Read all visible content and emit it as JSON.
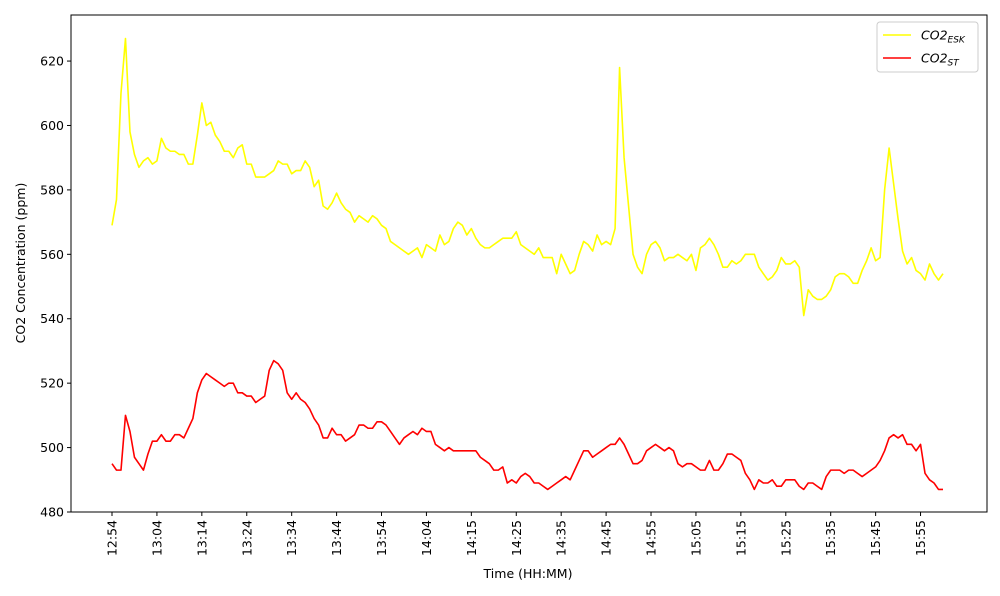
{
  "chart_data": {
    "type": "line",
    "x_label": "Time (HH:MM)",
    "y_label": "CO2 Concentration (ppm)",
    "legend": "upper right",
    "x": [
      "12:54",
      "12:55",
      "12:56",
      "12:57",
      "12:58",
      "12:59",
      "13:00",
      "13:01",
      "13:02",
      "13:03",
      "13:04",
      "13:05",
      "13:06",
      "13:07",
      "13:08",
      "13:09",
      "13:10",
      "13:11",
      "13:12",
      "13:13",
      "13:14",
      "13:15",
      "13:16",
      "13:17",
      "13:18",
      "13:19",
      "13:20",
      "13:21",
      "13:22",
      "13:23",
      "13:24",
      "13:25",
      "13:26",
      "13:27",
      "13:28",
      "13:29",
      "13:30",
      "13:31",
      "13:32",
      "13:33",
      "13:34",
      "13:35",
      "13:36",
      "13:37",
      "13:38",
      "13:39",
      "13:40",
      "13:41",
      "13:42",
      "13:43",
      "13:44",
      "13:45",
      "13:46",
      "13:47",
      "13:48",
      "13:49",
      "13:50",
      "13:51",
      "13:52",
      "13:53",
      "13:54",
      "13:55",
      "13:56",
      "13:57",
      "13:58",
      "13:59",
      "14:00",
      "14:01",
      "14:02",
      "14:03",
      "14:04",
      "14:05",
      "14:06",
      "14:07",
      "14:08",
      "14:09",
      "14:10",
      "14:11",
      "14:12",
      "14:13",
      "14:15",
      "14:16",
      "14:17",
      "14:18",
      "14:19",
      "14:20",
      "14:21",
      "14:22",
      "14:23",
      "14:24",
      "14:25",
      "14:26",
      "14:27",
      "14:28",
      "14:29",
      "14:30",
      "14:31",
      "14:32",
      "14:33",
      "14:34",
      "14:35",
      "14:36",
      "14:37",
      "14:38",
      "14:39",
      "14:40",
      "14:41",
      "14:42",
      "14:43",
      "14:44",
      "14:45",
      "14:46",
      "14:47",
      "14:48",
      "14:49",
      "14:50",
      "14:51",
      "14:52",
      "14:53",
      "14:54",
      "14:55",
      "14:56",
      "14:57",
      "14:58",
      "14:59",
      "15:00",
      "15:01",
      "15:02",
      "15:03",
      "15:04",
      "15:05",
      "15:06",
      "15:07",
      "15:08",
      "15:09",
      "15:10",
      "15:11",
      "15:12",
      "15:13",
      "15:14",
      "15:15",
      "15:16",
      "15:17",
      "15:18",
      "15:19",
      "15:20",
      "15:21",
      "15:22",
      "15:23",
      "15:24",
      "15:25",
      "15:26",
      "15:27",
      "15:28",
      "15:29",
      "15:30",
      "15:31",
      "15:32",
      "15:33",
      "15:34",
      "15:35",
      "15:36",
      "15:37",
      "15:38",
      "15:39",
      "15:40",
      "15:41",
      "15:42",
      "15:43",
      "15:44",
      "15:45",
      "15:46",
      "15:47",
      "15:48",
      "15:49",
      "15:50",
      "15:51",
      "15:52",
      "15:53",
      "15:54",
      "15:55",
      "15:56",
      "15:57",
      "15:58",
      "15:59",
      "16:00"
    ],
    "xticks": [
      "12:54",
      "13:04",
      "13:14",
      "13:24",
      "13:34",
      "13:44",
      "13:54",
      "14:04",
      "14:15",
      "14:25",
      "14:35",
      "14:45",
      "14:55",
      "15:05",
      "15:15",
      "15:25",
      "15:35",
      "15:45",
      "15:55"
    ],
    "ylim": [
      480,
      634.3
    ],
    "yticks": [
      480,
      500,
      520,
      540,
      560,
      580,
      600,
      620
    ],
    "series": [
      {
        "name": "CO2",
        "subscript": "ESK",
        "color": "#ffff00",
        "values": [
          569,
          577,
          610,
          627,
          598,
          591,
          587,
          589,
          590,
          588,
          589,
          596,
          593,
          592,
          592,
          591,
          591,
          588,
          588,
          597,
          607,
          600,
          601,
          597,
          595,
          592,
          592,
          590,
          593,
          594,
          588,
          588,
          584,
          584,
          584,
          585,
          586,
          589,
          588,
          588,
          585,
          586,
          586,
          589,
          587,
          581,
          583,
          575,
          574,
          576,
          579,
          576,
          574,
          573,
          570,
          572,
          571,
          570,
          572,
          571,
          569,
          568,
          564,
          563,
          562,
          561,
          560,
          561,
          562,
          559,
          563,
          562,
          561,
          566,
          563,
          564,
          568,
          570,
          569,
          566,
          568,
          565,
          563,
          562,
          562,
          563,
          564,
          565,
          565,
          565,
          567,
          563,
          562,
          561,
          560,
          562,
          559,
          559,
          559,
          554,
          560,
          557,
          554,
          555,
          560,
          564,
          563,
          561,
          566,
          563,
          564,
          563,
          568,
          618,
          590,
          575,
          560,
          556,
          554,
          560,
          563,
          564,
          562,
          558,
          559,
          559,
          560,
          559,
          558,
          560,
          555,
          562,
          563,
          565,
          563,
          560,
          556,
          556,
          558,
          557,
          558,
          560,
          560,
          560,
          556,
          554,
          552,
          553,
          555,
          559,
          557,
          557,
          558,
          556,
          541,
          549,
          547,
          546,
          546,
          547,
          549,
          553,
          554,
          554,
          553,
          551,
          551,
          555,
          558,
          562,
          558,
          559,
          580,
          593,
          582,
          571,
          561,
          557,
          559,
          555,
          554,
          552,
          557,
          554,
          552,
          554
        ]
      },
      {
        "name": "CO2",
        "subscript": "ST",
        "color": "#ff0000",
        "values": [
          495,
          493,
          493,
          510,
          505,
          497,
          495,
          493,
          498,
          502,
          502,
          504,
          502,
          502,
          504,
          504,
          503,
          506,
          509,
          517,
          521,
          523,
          522,
          521,
          520,
          519,
          520,
          520,
          517,
          517,
          516,
          516,
          514,
          515,
          516,
          524,
          527,
          526,
          524,
          517,
          515,
          517,
          515,
          514,
          512,
          509,
          507,
          503,
          503,
          506,
          504,
          504,
          502,
          503,
          504,
          507,
          507,
          506,
          506,
          508,
          508,
          507,
          505,
          503,
          501,
          503,
          504,
          505,
          504,
          506,
          505,
          505,
          501,
          500,
          499,
          500,
          499,
          499,
          499,
          499,
          499,
          499,
          497,
          496,
          495,
          493,
          493,
          494,
          489,
          490,
          489,
          491,
          492,
          491,
          489,
          489,
          488,
          487,
          488,
          489,
          490,
          491,
          490,
          493,
          496,
          499,
          499,
          497,
          498,
          499,
          500,
          501,
          501,
          503,
          501,
          498,
          495,
          495,
          496,
          499,
          500,
          501,
          500,
          499,
          500,
          499,
          495,
          494,
          495,
          495,
          494,
          493,
          493,
          496,
          493,
          493,
          495,
          498,
          498,
          497,
          496,
          492,
          490,
          487,
          490,
          489,
          489,
          490,
          488,
          488,
          490,
          490,
          490,
          488,
          487,
          489,
          489,
          488,
          487,
          491,
          493,
          493,
          493,
          492,
          493,
          493,
          492,
          491,
          492,
          493,
          494,
          496,
          499,
          503,
          504,
          503,
          504,
          501,
          501,
          499,
          501,
          492,
          490,
          489,
          487,
          487
        ]
      }
    ]
  }
}
